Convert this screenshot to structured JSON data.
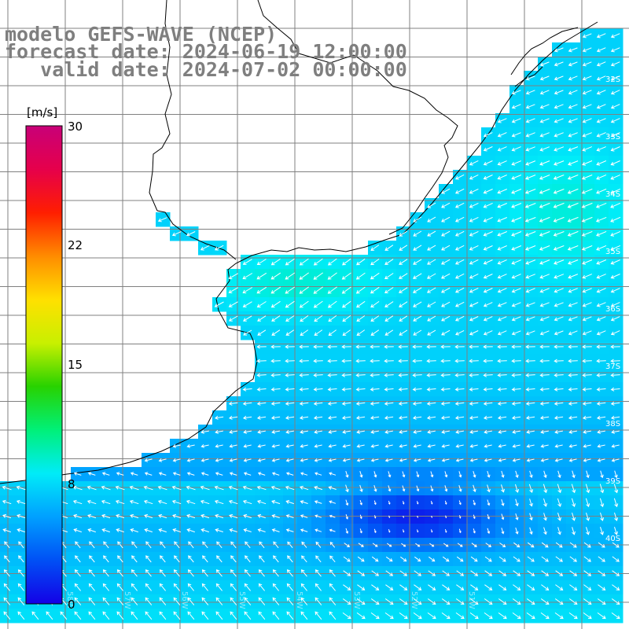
{
  "title": {
    "line1": "modelo GEFS-WAVE (NCEP)",
    "line2": "forecast date: 2024-06-19 12:00:00",
    "line3": "   valid date: 2024-07-02 00:00:00"
  },
  "colorbar": {
    "unit": "[m/s]",
    "ticks": [
      "30",
      "22",
      "15",
      "8",
      "0"
    ],
    "colors": [
      "#1400e6",
      "#0050f5",
      "#00a0ff",
      "#00ecf8",
      "#00f078",
      "#28d200",
      "#c8f000",
      "#ffe000",
      "#ff8c00",
      "#ff1e00",
      "#e6004b",
      "#c80078"
    ]
  },
  "lat_labels": [
    "32S",
    "33S",
    "34S",
    "35S",
    "36S",
    "37S",
    "38S",
    "39S",
    "40S"
  ],
  "lon_labels": [
    "58W",
    "57W",
    "56W",
    "55W",
    "54W",
    "53W",
    "52W",
    "51W"
  ],
  "map": {
    "land_color": "#ffffff",
    "grid_color": "#808080",
    "coast_color": "#000000",
    "arrow_color": "#ffffff"
  }
}
